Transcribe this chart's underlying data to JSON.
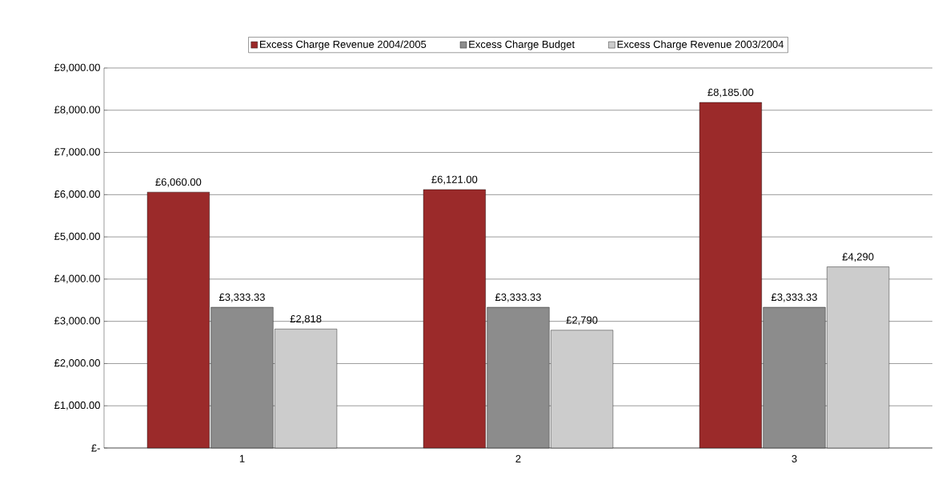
{
  "chart_data": {
    "type": "bar",
    "categories": [
      "1",
      "2",
      "3"
    ],
    "series": [
      {
        "name": "Excess Charge Revenue 2004/2005",
        "color": "#9b2a2a",
        "values": [
          6060,
          6121,
          8185
        ],
        "value_labels": [
          "£6,060.00",
          "£6,121.00",
          "£8,185.00"
        ]
      },
      {
        "name": "Excess Charge Budget",
        "color": "#8c8c8c",
        "values": [
          3333.33,
          3333.33,
          3333.33
        ],
        "value_labels": [
          "£3,333.33",
          "£3,333.33",
          "£3,333.33"
        ]
      },
      {
        "name": "Excess Charge Revenue 2003/2004",
        "color": "#cccccc",
        "values": [
          2818,
          2790,
          4290
        ],
        "value_labels": [
          "£2,818",
          "£2,790",
          "£4,290"
        ]
      }
    ],
    "ylim": [
      0,
      9000
    ],
    "yticks": [
      {
        "value": 0,
        "label": "£-"
      },
      {
        "value": 1000,
        "label": "£1,000.00"
      },
      {
        "value": 2000,
        "label": "£2,000.00"
      },
      {
        "value": 3000,
        "label": "£3,000.00"
      },
      {
        "value": 4000,
        "label": "£4,000.00"
      },
      {
        "value": 5000,
        "label": "£5,000.00"
      },
      {
        "value": 6000,
        "label": "£6,000.00"
      },
      {
        "value": 7000,
        "label": "£7,000.00"
      },
      {
        "value": 8000,
        "label": "£8,000.00"
      },
      {
        "value": 9000,
        "label": "£9,000.00"
      }
    ],
    "grid": "y",
    "legend": "top"
  }
}
